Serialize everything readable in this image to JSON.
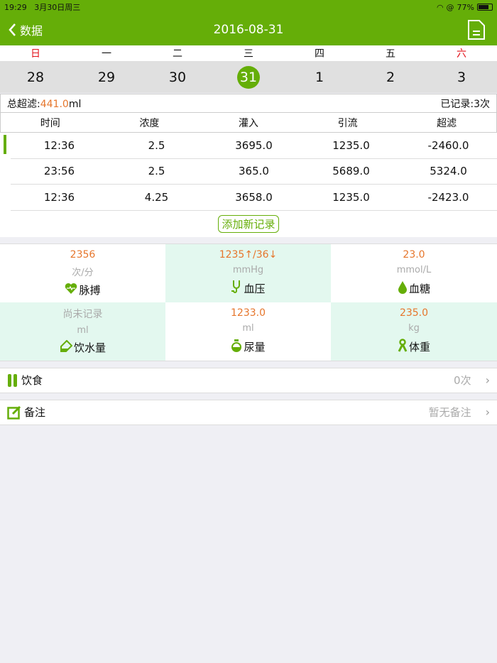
{
  "status": {
    "time": "19:29",
    "date": "3月30日周三",
    "battery": "77%"
  },
  "nav": {
    "back_label": "数据",
    "title": "2016-08-31"
  },
  "calendar": {
    "weekdays": [
      "日",
      "一",
      "二",
      "三",
      "四",
      "五",
      "六"
    ],
    "dates": [
      "28",
      "29",
      "30",
      "31",
      "1",
      "2",
      "3"
    ],
    "selected_index": 3
  },
  "summary": {
    "total_label": "总超滤:",
    "total_value": "441.0",
    "total_unit": "ml",
    "recorded": "已记录:3次"
  },
  "table": {
    "headers": [
      "时间",
      "浓度",
      "灌入",
      "引流",
      "超滤"
    ],
    "rows": [
      [
        "12:36",
        "2.5",
        "3695.0",
        "1235.0",
        "-2460.0"
      ],
      [
        "23:56",
        "2.5",
        "365.0",
        "5689.0",
        "5324.0"
      ],
      [
        "12:36",
        "4.25",
        "3658.0",
        "1235.0",
        "-2423.0"
      ]
    ]
  },
  "add_label": "添加新记录",
  "metrics": [
    {
      "value": "2356",
      "unit": "次/分",
      "name": "脉搏",
      "icon": "heart-pulse-icon"
    },
    {
      "value": "1235↑/36↓",
      "unit": "mmHg",
      "name": "血压",
      "icon": "stethoscope-icon"
    },
    {
      "value": "23.0",
      "unit": "mmol/L",
      "name": "血糖",
      "icon": "drop-icon"
    },
    {
      "value": "尚未记录",
      "unit": "ml",
      "name": "饮水量",
      "icon": "cup-icon"
    },
    {
      "value": "1233.0",
      "unit": "ml",
      "name": "尿量",
      "icon": "flask-icon"
    },
    {
      "value": "235.0",
      "unit": "kg",
      "name": "体重",
      "icon": "ribbon-icon"
    }
  ],
  "diet": {
    "label": "饮食",
    "value": "0次"
  },
  "notes": {
    "label": "备注",
    "value": "暂无备注"
  },
  "colors": {
    "accent": "#65ae08",
    "highlight": "#e6762c",
    "weekend": "#e3141c"
  }
}
